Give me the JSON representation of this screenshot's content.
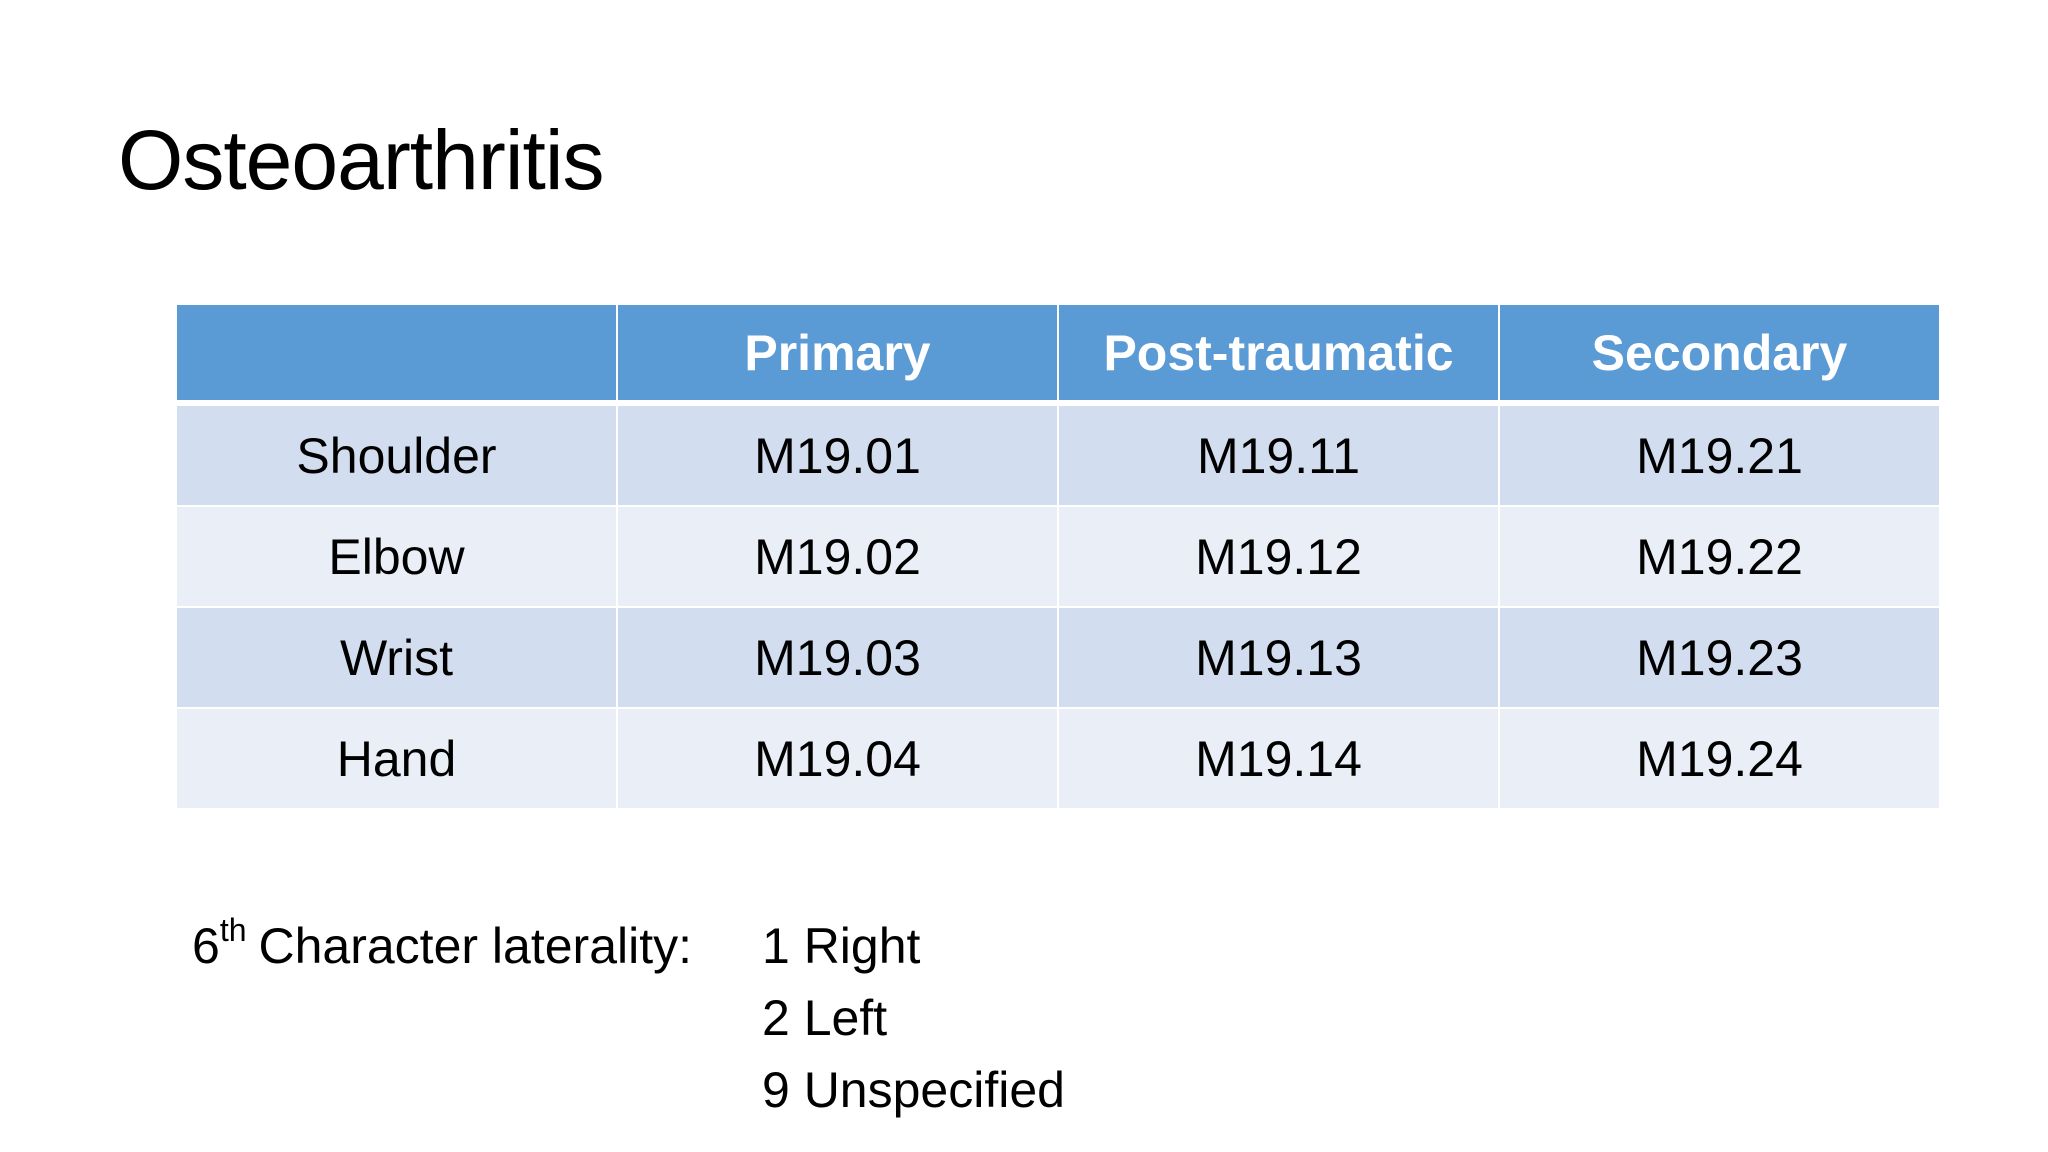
{
  "title": "Osteoarthritis",
  "table": {
    "header": [
      "Primary",
      "Post-traumatic",
      "Secondary"
    ],
    "rows": [
      [
        "Shoulder",
        "M19.01",
        "M19.11",
        "M19.21"
      ],
      [
        "Elbow",
        "M19.02",
        "M19.12",
        "M19.22"
      ],
      [
        "Wrist",
        "M19.03",
        "M19.13",
        "M19.23"
      ],
      [
        "Hand",
        "M19.04",
        "M19.14",
        "M19.24"
      ]
    ]
  },
  "note": {
    "number": "6",
    "suffix": "th",
    "label": "Character laterality:",
    "items": [
      "1 Right",
      "2 Left",
      "9 Unspecified"
    ]
  }
}
